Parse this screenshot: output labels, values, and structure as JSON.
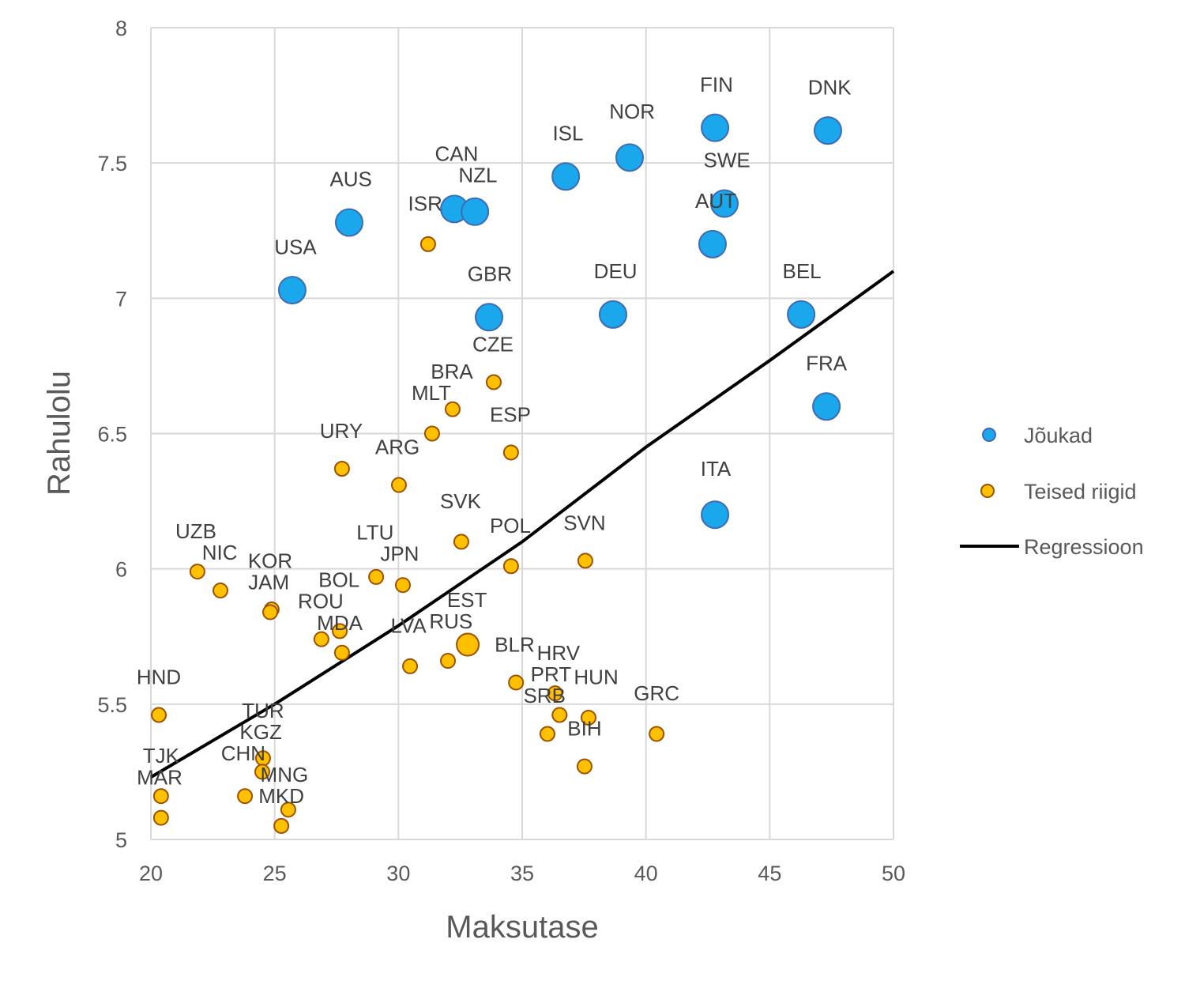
{
  "chart_data": {
    "type": "scatter",
    "title": "",
    "xlabel": "Maksutase",
    "ylabel": "Rahulolu",
    "xlim": [
      20,
      50
    ],
    "ylim": [
      5,
      8
    ],
    "xticks": [
      "20",
      "25",
      "30",
      "35",
      "40",
      "45",
      "50"
    ],
    "yticks": [
      "5",
      "5.5",
      "6",
      "6.5",
      "7",
      "7.5",
      "8"
    ],
    "grid": true,
    "legend_position": "right",
    "colors": {
      "rich_fill": "#1AA7EC",
      "rich_stroke": "#3D6BB5",
      "other_fill": "#FFC000",
      "other_stroke": "#9C5200",
      "regression": "#000000",
      "grid": "#D9D9D9"
    },
    "series": [
      {
        "name": "Jõukad",
        "points": [
          {
            "x": 25.71,
            "y": 7.03
          },
          {
            "x": 28.01,
            "y": 7.28
          },
          {
            "x": 32.26,
            "y": 7.33
          },
          {
            "x": 33.09,
            "y": 7.32
          },
          {
            "x": 36.76,
            "y": 7.45
          },
          {
            "x": 39.34,
            "y": 7.52
          },
          {
            "x": 42.79,
            "y": 7.63
          },
          {
            "x": 47.35,
            "y": 7.62
          },
          {
            "x": 43.17,
            "y": 7.35
          },
          {
            "x": 42.69,
            "y": 7.2
          },
          {
            "x": 33.66,
            "y": 6.93
          },
          {
            "x": 38.67,
            "y": 6.94
          },
          {
            "x": 46.27,
            "y": 6.94
          },
          {
            "x": 47.29,
            "y": 6.6
          },
          {
            "x": 42.79,
            "y": 6.2
          }
        ]
      },
      {
        "name": "Teised riigid",
        "points": [
          {
            "x": 31.2,
            "y": 7.2
          },
          {
            "x": 33.85,
            "y": 6.69
          },
          {
            "x": 32.19,
            "y": 6.59
          },
          {
            "x": 31.36,
            "y": 6.5
          },
          {
            "x": 34.55,
            "y": 6.43
          },
          {
            "x": 27.72,
            "y": 6.37
          },
          {
            "x": 30.02,
            "y": 6.31
          },
          {
            "x": 32.54,
            "y": 6.1
          },
          {
            "x": 34.55,
            "y": 6.01
          },
          {
            "x": 37.55,
            "y": 6.03
          },
          {
            "x": 21.88,
            "y": 5.99
          },
          {
            "x": 22.81,
            "y": 5.92
          },
          {
            "x": 24.88,
            "y": 5.85
          },
          {
            "x": 24.82,
            "y": 5.84
          },
          {
            "x": 29.1,
            "y": 5.97
          },
          {
            "x": 30.18,
            "y": 5.94
          },
          {
            "x": 26.89,
            "y": 5.74
          },
          {
            "x": 27.63,
            "y": 5.77
          },
          {
            "x": 27.72,
            "y": 5.69
          },
          {
            "x": 30.47,
            "y": 5.64
          },
          {
            "x": 32.0,
            "y": 5.66
          },
          {
            "x": 32.8,
            "y": 5.72,
            "large": true
          },
          {
            "x": 34.75,
            "y": 5.58
          },
          {
            "x": 36.51,
            "y": 5.46
          },
          {
            "x": 36.33,
            "y": 5.54
          },
          {
            "x": 37.68,
            "y": 5.45
          },
          {
            "x": 36.02,
            "y": 5.39
          },
          {
            "x": 37.52,
            "y": 5.27
          },
          {
            "x": 40.43,
            "y": 5.39
          },
          {
            "x": 20.32,
            "y": 5.46
          },
          {
            "x": 24.53,
            "y": 5.3
          },
          {
            "x": 24.5,
            "y": 5.25
          },
          {
            "x": 23.8,
            "y": 5.16
          },
          {
            "x": 25.55,
            "y": 5.11
          },
          {
            "x": 25.27,
            "y": 5.05
          },
          {
            "x": 20.41,
            "y": 5.16
          },
          {
            "x": 20.41,
            "y": 5.08
          }
        ]
      },
      {
        "name": "Regressioon",
        "type": "line",
        "points": [
          {
            "x": 20,
            "y": 5.23
          },
          {
            "x": 25,
            "y": 5.5
          },
          {
            "x": 30,
            "y": 5.79
          },
          {
            "x": 35,
            "y": 6.1
          },
          {
            "x": 40,
            "y": 6.45
          },
          {
            "x": 45,
            "y": 6.77
          },
          {
            "x": 50,
            "y": 7.1
          }
        ]
      }
    ],
    "annotations": [
      {
        "text": "FIN",
        "x": 42.85,
        "y": 7.79
      },
      {
        "text": "DNK",
        "x": 47.42,
        "y": 7.78
      },
      {
        "text": "NOR",
        "x": 39.44,
        "y": 7.69
      },
      {
        "text": "ISL",
        "x": 36.85,
        "y": 7.61
      },
      {
        "text": "SWE",
        "x": 43.27,
        "y": 7.51
      },
      {
        "text": "CAN",
        "x": 32.35,
        "y": 7.5
      },
      {
        "text": "NZL",
        "x": 33.21,
        "y": 7.49
      },
      {
        "text": "AUS",
        "x": 28.08,
        "y": 7.44
      },
      {
        "text": "AUT",
        "x": 42.82,
        "y": 7.36
      },
      {
        "text": "ISR",
        "x": 31.08,
        "y": 7.35
      },
      {
        "text": "USA",
        "x": 25.84,
        "y": 7.19
      },
      {
        "text": "GBR",
        "x": 33.69,
        "y": 7.09
      },
      {
        "text": "DEU",
        "x": 38.77,
        "y": 7.1
      },
      {
        "text": "BEL",
        "x": 46.3,
        "y": 7.1
      },
      {
        "text": "CZE",
        "x": 33.82,
        "y": 6.83
      },
      {
        "text": "BRA",
        "x": 32.16,
        "y": 6.73
      },
      {
        "text": "FRA",
        "x": 47.29,
        "y": 6.76
      },
      {
        "text": "MLT",
        "x": 31.33,
        "y": 6.65
      },
      {
        "text": "ESP",
        "x": 34.52,
        "y": 6.57
      },
      {
        "text": "URY",
        "x": 27.69,
        "y": 6.51
      },
      {
        "text": "ARG",
        "x": 29.96,
        "y": 6.45
      },
      {
        "text": "ITA",
        "x": 42.82,
        "y": 6.37
      },
      {
        "text": "SVK",
        "x": 32.51,
        "y": 6.25
      },
      {
        "text": "POL",
        "x": 34.52,
        "y": 6.16
      },
      {
        "text": "SVN",
        "x": 37.52,
        "y": 6.17
      },
      {
        "text": "UZB",
        "x": 21.82,
        "y": 6.13
      },
      {
        "text": "LTU",
        "x": 29.06,
        "y": 6.11
      },
      {
        "text": "JPN",
        "x": 30.05,
        "y": 6.08
      },
      {
        "text": "NIC",
        "x": 22.78,
        "y": 6.07
      },
      {
        "text": "KOR",
        "x": 24.82,
        "y": 6.0
      },
      {
        "text": "JAM",
        "x": 24.76,
        "y": 5.98
      },
      {
        "text": "BOL",
        "x": 27.6,
        "y": 5.92
      },
      {
        "text": "ROU",
        "x": 26.86,
        "y": 5.89
      },
      {
        "text": "EST",
        "x": 32.77,
        "y": 5.88
      },
      {
        "text": "MDA",
        "x": 27.63,
        "y": 5.83
      },
      {
        "text": "RUS",
        "x": 32.03,
        "y": 5.81
      },
      {
        "text": "LVA",
        "x": 30.5,
        "y": 5.79
      },
      {
        "text": "BLR",
        "x": 34.75,
        "y": 5.72
      },
      {
        "text": "HRV",
        "x": 36.41,
        "y": 5.68
      },
      {
        "text": "PRT",
        "x": 36.47,
        "y": 5.61
      },
      {
        "text": "HUN",
        "x": 37.68,
        "y": 5.6
      },
      {
        "text": "HND",
        "x": 20.32,
        "y": 5.6
      },
      {
        "text": "SRB",
        "x": 35.9,
        "y": 5.54
      },
      {
        "text": "GRC",
        "x": 40.43,
        "y": 5.54
      },
      {
        "text": "TUR",
        "x": 24.53,
        "y": 5.45
      },
      {
        "text": "BIH",
        "x": 37.52,
        "y": 5.41
      },
      {
        "text": "KGZ",
        "x": 24.44,
        "y": 5.39
      },
      {
        "text": "TJK",
        "x": 20.41,
        "y": 5.31
      },
      {
        "text": "CHN",
        "x": 23.73,
        "y": 5.3
      },
      {
        "text": "MNG",
        "x": 25.39,
        "y": 5.25
      },
      {
        "text": "MAR",
        "x": 20.35,
        "y": 5.23
      },
      {
        "text": "MKD",
        "x": 25.27,
        "y": 5.2
      }
    ]
  }
}
